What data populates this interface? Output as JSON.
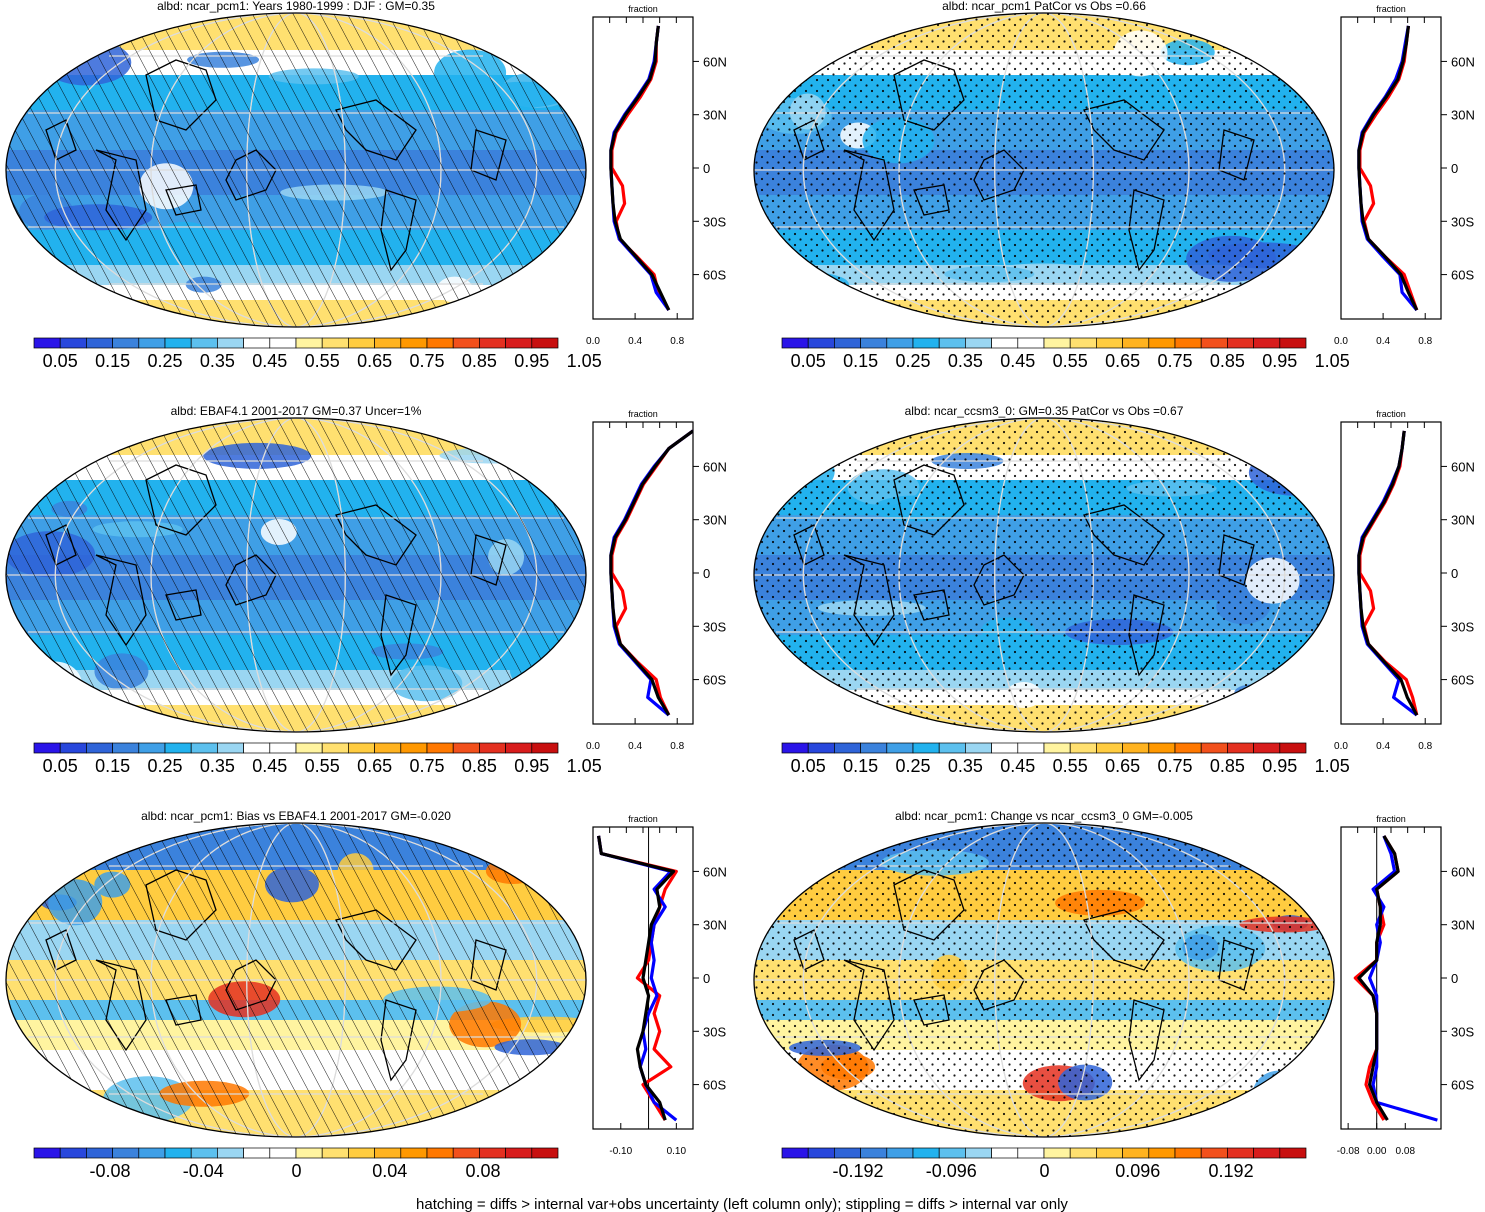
{
  "palettes": {
    "abs": [
      "#2a14e8",
      "#2847dc",
      "#2f64d8",
      "#3b82dc",
      "#3f9fe6",
      "#22b2ee",
      "#5cc0ee",
      "#9ad6f2",
      "#ffffff",
      "#ffffff",
      "#fff4a0",
      "#ffe070",
      "#ffcc40",
      "#ffb320",
      "#ff9800",
      "#ff7800",
      "#f2501c",
      "#e43020",
      "#d81c1c",
      "#c80f0f"
    ],
    "diff": [
      "#2a14e8",
      "#2847dc",
      "#2f64d8",
      "#3b82dc",
      "#3f9fe6",
      "#22b2ee",
      "#5cc0ee",
      "#9ad6f2",
      "#ffffff",
      "#ffffff",
      "#fff4a0",
      "#ffe070",
      "#ffcc40",
      "#ffb320",
      "#ff9800",
      "#ff7800",
      "#f2501c",
      "#e43020",
      "#d81c1c",
      "#c80f0f"
    ]
  },
  "line_colors": {
    "model": "#ff0000",
    "obs": "#0000ff",
    "ref": "#000000"
  },
  "footnote": "hatching = diffs > internal var+obs uncertainty (left column only); stippling = diffs > internal var only",
  "chart_data": [
    {
      "type": "heatmap",
      "title": "albd: ncar_pcm1: Years 1980-1999 : DJF : GM=0.35",
      "pattern": "hatch",
      "palette": "abs",
      "colorbar_labels": [
        "0.05",
        "0.15",
        "0.25",
        "0.35",
        "0.45",
        "0.55",
        "0.65",
        "0.75",
        "0.85",
        "0.95",
        "1.05"
      ],
      "lat_ticks": [
        "60N",
        "30N",
        "0",
        "30S",
        "60S"
      ],
      "zonal": {
        "title": "fraction",
        "x_ticks": [
          "0.0",
          "0.4",
          "0.8"
        ],
        "xlim": [
          0,
          0.95
        ],
        "zero_line": false,
        "lat": [
          80,
          70,
          60,
          50,
          40,
          30,
          20,
          10,
          0,
          -10,
          -20,
          -30,
          -40,
          -50,
          -60,
          -70,
          -80
        ],
        "series": [
          {
            "color": "model",
            "values": [
              0.62,
              0.6,
              0.6,
              0.55,
              0.45,
              0.33,
              0.22,
              0.18,
              0.18,
              0.28,
              0.3,
              0.22,
              0.25,
              0.42,
              0.58,
              0.62,
              0.72
            ]
          },
          {
            "color": "obs",
            "values": [
              0.62,
              0.6,
              0.58,
              0.53,
              0.42,
              0.3,
              0.2,
              0.17,
              0.17,
              0.18,
              0.19,
              0.2,
              0.25,
              0.4,
              0.55,
              0.6,
              0.72
            ]
          },
          {
            "color": "ref",
            "values": [
              0.62,
              0.6,
              0.59,
              0.54,
              0.43,
              0.31,
              0.21,
              0.17,
              0.17,
              0.18,
              0.19,
              0.21,
              0.26,
              0.41,
              0.56,
              0.64,
              0.72
            ]
          }
        ]
      }
    },
    {
      "type": "heatmap",
      "title": "albd: ncar_pcm1 PatCor vs Obs =0.66",
      "pattern": "stipple",
      "palette": "abs",
      "colorbar_labels": [
        "0.05",
        "0.15",
        "0.25",
        "0.35",
        "0.45",
        "0.55",
        "0.65",
        "0.75",
        "0.85",
        "0.95",
        "1.05"
      ],
      "lat_ticks": [
        "60N",
        "30N",
        "0",
        "30S",
        "60S"
      ],
      "zonal": {
        "title": "fraction",
        "x_ticks": [
          "0.0",
          "0.4",
          "0.8"
        ],
        "xlim": [
          0,
          0.95
        ],
        "zero_line": false,
        "lat": [
          80,
          70,
          60,
          50,
          40,
          30,
          20,
          10,
          0,
          -10,
          -20,
          -30,
          -40,
          -50,
          -60,
          -70,
          -80
        ],
        "series": [
          {
            "color": "model",
            "values": [
              0.64,
              0.62,
              0.6,
              0.55,
              0.45,
              0.33,
              0.22,
              0.18,
              0.18,
              0.28,
              0.31,
              0.22,
              0.26,
              0.42,
              0.6,
              0.66,
              0.72
            ]
          },
          {
            "color": "obs",
            "values": [
              0.64,
              0.61,
              0.58,
              0.52,
              0.42,
              0.3,
              0.2,
              0.17,
              0.17,
              0.18,
              0.19,
              0.2,
              0.25,
              0.4,
              0.56,
              0.58,
              0.72
            ]
          },
          {
            "color": "ref",
            "values": [
              0.64,
              0.62,
              0.59,
              0.54,
              0.43,
              0.31,
              0.21,
              0.17,
              0.17,
              0.18,
              0.19,
              0.21,
              0.26,
              0.42,
              0.57,
              0.64,
              0.72
            ]
          }
        ]
      }
    },
    {
      "type": "heatmap",
      "title": "albd: EBAF4.1 2001-2017 GM=0.37 Uncer=1%",
      "pattern": "hatch",
      "palette": "abs",
      "colorbar_labels": [
        "0.05",
        "0.15",
        "0.25",
        "0.35",
        "0.45",
        "0.55",
        "0.65",
        "0.75",
        "0.85",
        "0.95",
        "1.05"
      ],
      "lat_ticks": [
        "60N",
        "30N",
        "0",
        "30S",
        "60S"
      ],
      "zonal": {
        "title": "fraction",
        "x_ticks": [
          "0.0",
          "0.4",
          "0.8"
        ],
        "xlim": [
          0,
          0.95
        ],
        "zero_line": false,
        "lat": [
          80,
          70,
          60,
          50,
          40,
          30,
          20,
          10,
          0,
          -10,
          -20,
          -30,
          -40,
          -50,
          -60,
          -70,
          -80
        ],
        "series": [
          {
            "color": "model",
            "values": [
              0.95,
              0.72,
              0.6,
              0.48,
              0.4,
              0.32,
              0.22,
              0.18,
              0.18,
              0.28,
              0.31,
              0.22,
              0.26,
              0.42,
              0.6,
              0.64,
              0.72
            ]
          },
          {
            "color": "obs",
            "values": [
              0.95,
              0.72,
              0.58,
              0.46,
              0.38,
              0.3,
              0.2,
              0.17,
              0.17,
              0.18,
              0.19,
              0.2,
              0.25,
              0.4,
              0.55,
              0.52,
              0.72
            ]
          },
          {
            "color": "ref",
            "values": [
              0.95,
              0.72,
              0.59,
              0.47,
              0.39,
              0.31,
              0.21,
              0.17,
              0.17,
              0.18,
              0.19,
              0.21,
              0.26,
              0.41,
              0.56,
              0.62,
              0.72
            ]
          }
        ]
      }
    },
    {
      "type": "heatmap",
      "title": "albd: ncar_ccsm3_0: GM=0.35 PatCor vs Obs =0.67",
      "pattern": "stipple",
      "palette": "abs",
      "colorbar_labels": [
        "0.05",
        "0.15",
        "0.25",
        "0.35",
        "0.45",
        "0.55",
        "0.65",
        "0.75",
        "0.85",
        "0.95",
        "1.05"
      ],
      "lat_ticks": [
        "60N",
        "30N",
        "0",
        "30S",
        "60S"
      ],
      "zonal": {
        "title": "fraction",
        "x_ticks": [
          "0.0",
          "0.4",
          "0.8"
        ],
        "xlim": [
          0,
          0.95
        ],
        "zero_line": false,
        "lat": [
          80,
          70,
          60,
          50,
          40,
          30,
          20,
          10,
          0,
          -10,
          -20,
          -30,
          -40,
          -50,
          -60,
          -70,
          -80
        ],
        "series": [
          {
            "color": "model",
            "values": [
              0.6,
              0.58,
              0.56,
              0.5,
              0.42,
              0.32,
              0.22,
              0.18,
              0.18,
              0.28,
              0.31,
              0.22,
              0.26,
              0.42,
              0.62,
              0.68,
              0.72
            ]
          },
          {
            "color": "obs",
            "values": [
              0.6,
              0.58,
              0.55,
              0.48,
              0.4,
              0.3,
              0.2,
              0.17,
              0.17,
              0.18,
              0.19,
              0.2,
              0.25,
              0.4,
              0.55,
              0.5,
              0.72
            ]
          },
          {
            "color": "ref",
            "values": [
              0.6,
              0.58,
              0.55,
              0.49,
              0.41,
              0.31,
              0.21,
              0.17,
              0.17,
              0.18,
              0.19,
              0.21,
              0.26,
              0.41,
              0.57,
              0.63,
              0.72
            ]
          }
        ]
      }
    },
    {
      "type": "heatmap",
      "title": "albd: ncar_pcm1: Bias vs EBAF4.1 2001-2017 GM=-0.020",
      "pattern": "hatch",
      "palette": "diff",
      "colorbar_labels": [
        "-0.08",
        "-0.04",
        "0",
        "0.04",
        "0.08"
      ],
      "lat_ticks": [
        "60N",
        "30N",
        "0",
        "30S",
        "60S"
      ],
      "zonal": {
        "title": "fraction",
        "x_ticks": [
          "-0.10",
          "0.10"
        ],
        "xlim": [
          -0.2,
          0.16
        ],
        "zero_line": true,
        "lat": [
          80,
          70,
          60,
          50,
          40,
          30,
          20,
          10,
          0,
          -10,
          -20,
          -30,
          -40,
          -50,
          -60,
          -70,
          -80
        ],
        "series": [
          {
            "color": "model",
            "values": [
              -0.18,
              -0.17,
              0.1,
              0.06,
              0.04,
              0.02,
              0.01,
              0.0,
              -0.04,
              0.04,
              0.02,
              0.04,
              0.02,
              0.08,
              -0.02,
              0.02,
              0.06
            ]
          },
          {
            "color": "obs",
            "values": [
              -0.18,
              -0.17,
              0.08,
              0.02,
              0.06,
              0.02,
              0.01,
              0.02,
              0.01,
              0.03,
              0.0,
              -0.02,
              -0.01,
              -0.03,
              -0.01,
              0.02,
              0.1
            ]
          },
          {
            "color": "ref",
            "values": [
              -0.18,
              -0.17,
              0.09,
              0.03,
              0.04,
              0.01,
              0.0,
              -0.01,
              -0.02,
              0.0,
              -0.01,
              -0.02,
              -0.04,
              -0.03,
              -0.01,
              0.04,
              0.06
            ]
          }
        ]
      }
    },
    {
      "type": "heatmap",
      "title": "albd: ncar_pcm1: Change vs ncar_ccsm3_0 GM=-0.005",
      "pattern": "stipple",
      "palette": "diff",
      "colorbar_labels": [
        "-0.192",
        "-0.096",
        "0",
        "0.096",
        "0.192"
      ],
      "lat_ticks": [
        "60N",
        "30N",
        "0",
        "30S",
        "60S"
      ],
      "zonal": {
        "title": "fraction",
        "x_ticks": [
          "-0.08",
          "0.00",
          "0.08"
        ],
        "xlim": [
          -0.1,
          0.18
        ],
        "zero_line": true,
        "lat": [
          80,
          70,
          60,
          50,
          40,
          30,
          20,
          10,
          0,
          -10,
          -20,
          -30,
          -40,
          -50,
          -60,
          -70,
          -80
        ],
        "series": [
          {
            "color": "model",
            "values": [
              0.02,
              0.05,
              0.06,
              0.0,
              0.01,
              0.02,
              0.0,
              0.0,
              -0.06,
              -0.01,
              0.0,
              0.0,
              0.0,
              -0.02,
              -0.03,
              -0.01,
              0.02
            ]
          },
          {
            "color": "obs",
            "values": [
              0.02,
              0.04,
              0.05,
              -0.01,
              0.02,
              0.0,
              0.01,
              0.0,
              -0.02,
              0.0,
              0.0,
              0.0,
              0.0,
              0.0,
              -0.01,
              0.0,
              0.17
            ]
          },
          {
            "color": "ref",
            "values": [
              0.02,
              0.05,
              0.06,
              0.0,
              0.01,
              0.01,
              0.0,
              0.0,
              -0.05,
              -0.01,
              0.0,
              0.0,
              0.0,
              -0.01,
              -0.02,
              0.0,
              0.03
            ]
          }
        ]
      }
    }
  ]
}
